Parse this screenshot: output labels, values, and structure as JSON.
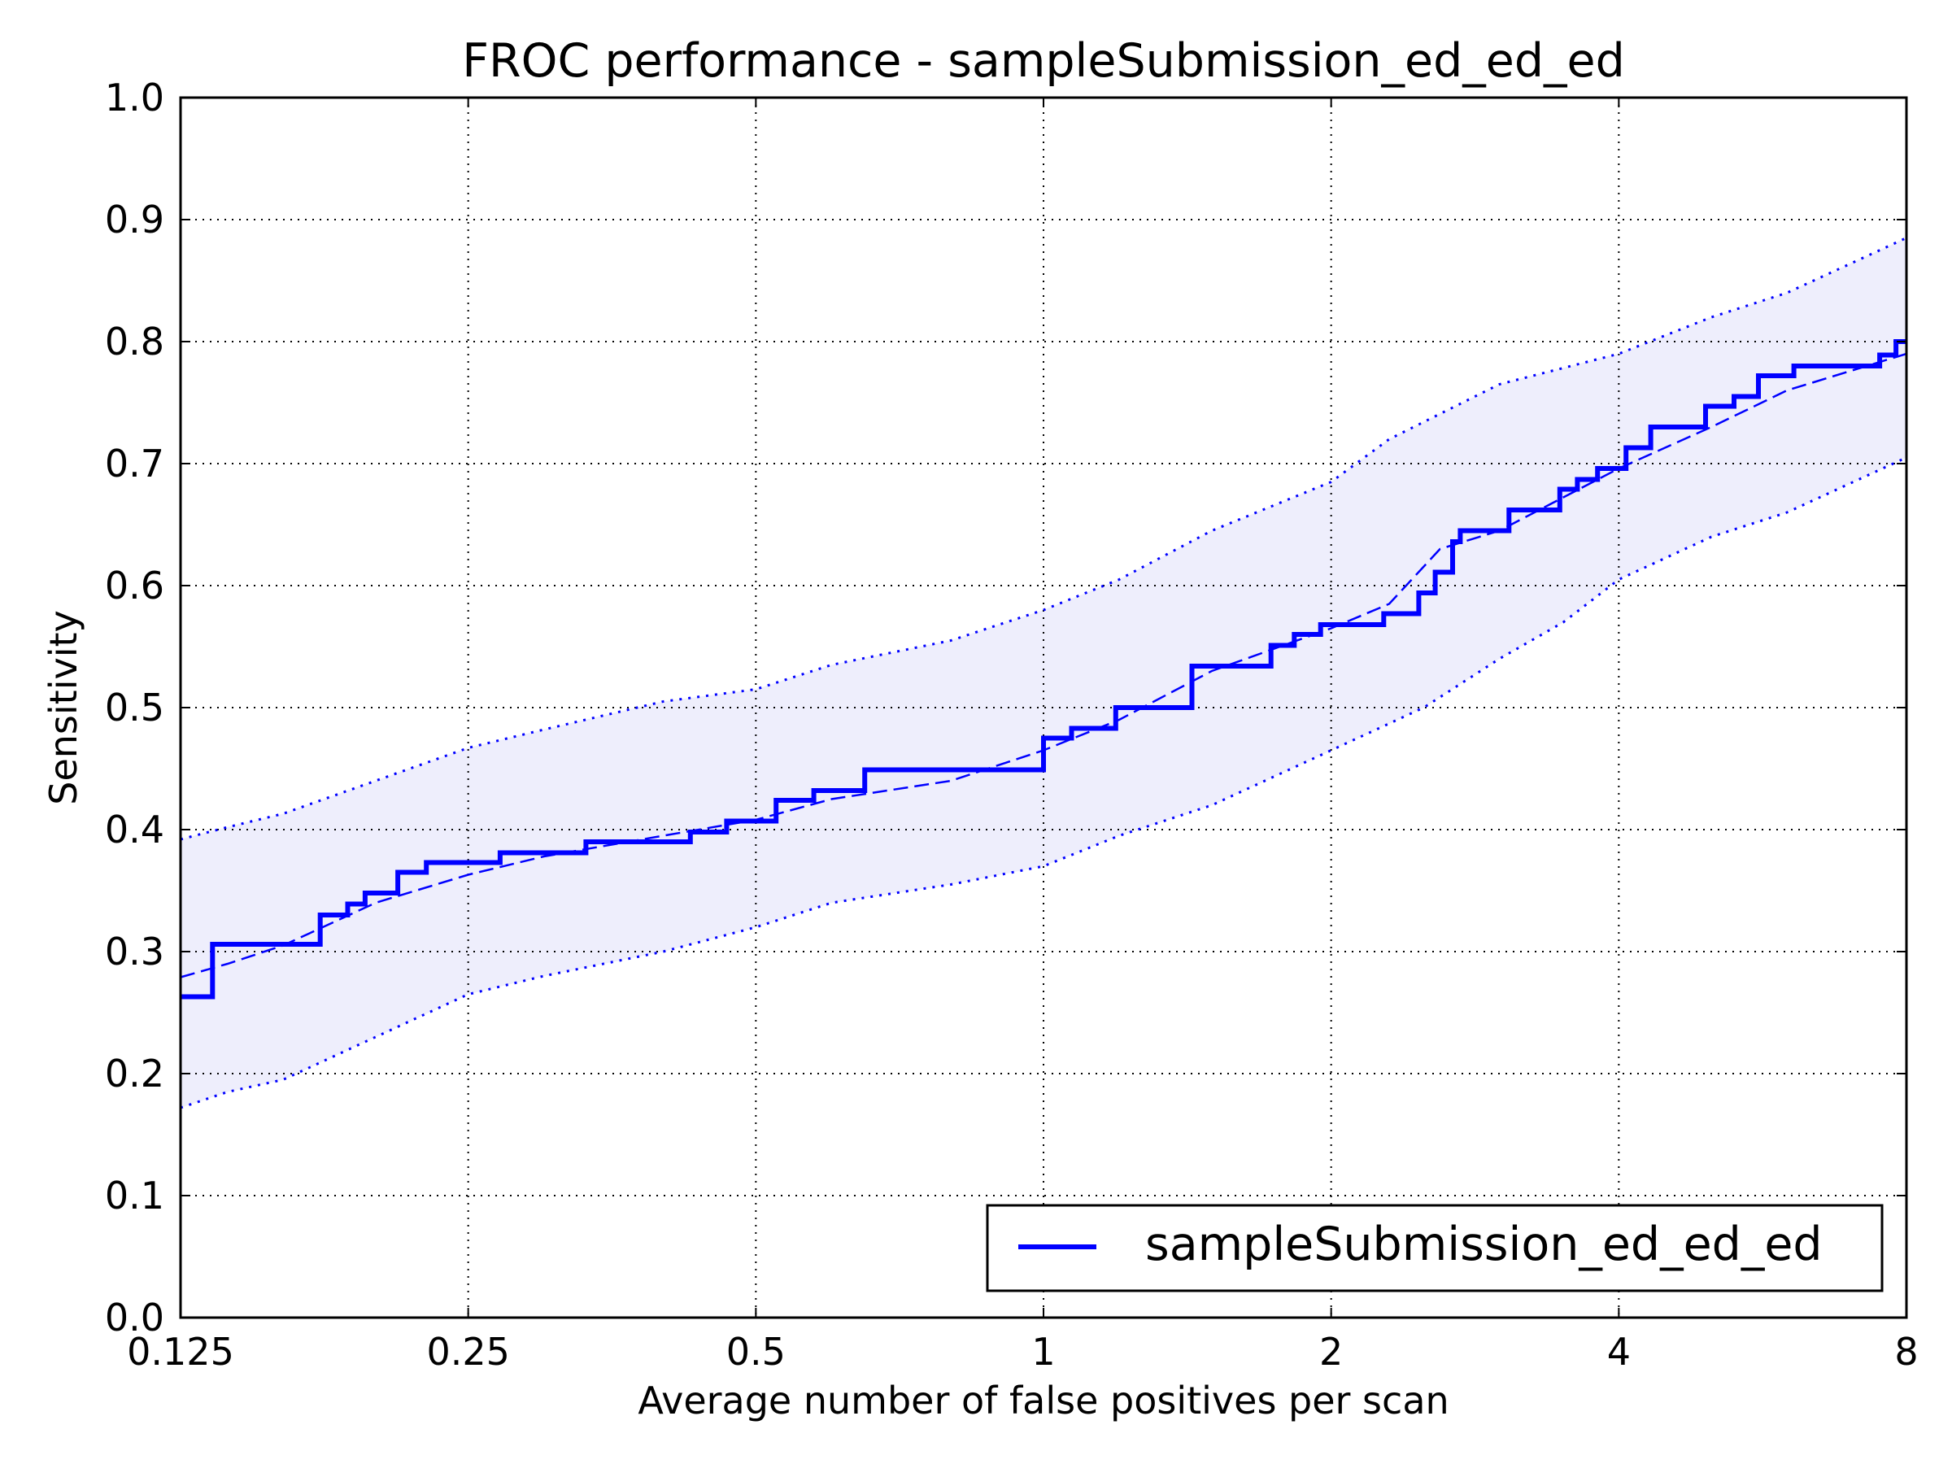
{
  "chart_data": {
    "type": "line",
    "title": "FROC performance - sampleSubmission_ed_ed_ed",
    "xlabel": "Average number of false positives per scan",
    "ylabel": "Sensitivity",
    "x_scale": "log2",
    "xlim": [
      0.125,
      8
    ],
    "ylim": [
      0.0,
      1.0
    ],
    "x_ticks": [
      {
        "value": 0.125,
        "label": "0.125"
      },
      {
        "value": 0.25,
        "label": "0.25"
      },
      {
        "value": 0.5,
        "label": "0.5"
      },
      {
        "value": 1,
        "label": "1"
      },
      {
        "value": 2,
        "label": "2"
      },
      {
        "value": 4,
        "label": "4"
      },
      {
        "value": 8,
        "label": "8"
      }
    ],
    "y_ticks": [
      {
        "value": 0.0,
        "label": "0.0"
      },
      {
        "value": 0.1,
        "label": "0.1"
      },
      {
        "value": 0.2,
        "label": "0.2"
      },
      {
        "value": 0.3,
        "label": "0.3"
      },
      {
        "value": 0.4,
        "label": "0.4"
      },
      {
        "value": 0.5,
        "label": "0.5"
      },
      {
        "value": 0.6,
        "label": "0.6"
      },
      {
        "value": 0.7,
        "label": "0.7"
      },
      {
        "value": 0.8,
        "label": "0.8"
      },
      {
        "value": 0.9,
        "label": "0.9"
      },
      {
        "value": 1.0,
        "label": "1.0"
      }
    ],
    "grid": true,
    "legend_position": "bottom-right",
    "series": [
      {
        "name": "sampleSubmission_ed_ed_ed",
        "style": "solid-step",
        "color": "#0000ff",
        "x": [
          0.125,
          0.135,
          0.135,
          0.175,
          0.175,
          0.181,
          0.181,
          0.187,
          0.187,
          0.195,
          0.195,
          0.211,
          0.211,
          0.226,
          0.226,
          0.27,
          0.27,
          0.332,
          0.332,
          0.427,
          0.427,
          0.466,
          0.466,
          0.525,
          0.525,
          0.575,
          0.575,
          0.65,
          0.65,
          1.0,
          1.0,
          1.07,
          1.07,
          1.19,
          1.19,
          1.43,
          1.43,
          1.48,
          1.48,
          1.73,
          1.73,
          1.83,
          1.83,
          1.95,
          1.95,
          2.27,
          2.27,
          2.47,
          2.47,
          2.57,
          2.57,
          2.68,
          2.68,
          2.73,
          2.73,
          3.07,
          3.07,
          3.47,
          3.47,
          3.62,
          3.62,
          3.8,
          3.8,
          4.07,
          4.07,
          4.32,
          4.32,
          4.93,
          4.93,
          5.28,
          5.28,
          5.6,
          5.6,
          6.1,
          6.1,
          7.5,
          7.5,
          7.8,
          7.8,
          8.0
        ],
        "y": [
          0.263,
          0.263,
          0.306,
          0.306,
          0.33,
          0.33,
          0.33,
          0.33,
          0.339,
          0.339,
          0.348,
          0.348,
          0.365,
          0.365,
          0.373,
          0.373,
          0.381,
          0.381,
          0.39,
          0.39,
          0.398,
          0.398,
          0.407,
          0.407,
          0.424,
          0.424,
          0.432,
          0.432,
          0.449,
          0.449,
          0.475,
          0.475,
          0.483,
          0.483,
          0.5,
          0.5,
          0.534,
          0.534,
          0.534,
          0.534,
          0.551,
          0.551,
          0.56,
          0.56,
          0.568,
          0.568,
          0.577,
          0.577,
          0.594,
          0.594,
          0.611,
          0.611,
          0.636,
          0.636,
          0.645,
          0.645,
          0.662,
          0.662,
          0.679,
          0.679,
          0.687,
          0.687,
          0.696,
          0.696,
          0.713,
          0.713,
          0.73,
          0.73,
          0.747,
          0.747,
          0.755,
          0.755,
          0.772,
          0.772,
          0.78,
          0.78,
          0.789,
          0.789,
          0.8,
          0.8
        ]
      },
      {
        "style": "dashed",
        "color": "#0000ff",
        "x": [
          0.125,
          0.14,
          0.16,
          0.2,
          0.25,
          0.3,
          0.4,
          0.5,
          0.6,
          0.8,
          1.0,
          1.2,
          1.5,
          2.0,
          2.3,
          2.6,
          3.0,
          4.0,
          5.0,
          6.0,
          8.0
        ],
        "y": [
          0.279,
          0.29,
          0.305,
          0.34,
          0.363,
          0.378,
          0.395,
          0.408,
          0.425,
          0.44,
          0.465,
          0.49,
          0.53,
          0.565,
          0.585,
          0.63,
          0.645,
          0.696,
          0.73,
          0.76,
          0.79
        ]
      },
      {
        "style": "dotted",
        "color": "#0000ff",
        "x": [
          0.125,
          0.14,
          0.16,
          0.2,
          0.25,
          0.3,
          0.4,
          0.5,
          0.6,
          0.8,
          1.0,
          1.2,
          1.5,
          2.0,
          2.3,
          3.0,
          4.0,
          5.0,
          6.0,
          8.0
        ],
        "y": [
          0.392,
          0.402,
          0.413,
          0.44,
          0.467,
          0.482,
          0.505,
          0.515,
          0.535,
          0.555,
          0.58,
          0.605,
          0.645,
          0.685,
          0.72,
          0.765,
          0.79,
          0.82,
          0.84,
          0.885
        ]
      },
      {
        "style": "dotted",
        "color": "#0000ff",
        "x": [
          0.125,
          0.14,
          0.16,
          0.2,
          0.25,
          0.3,
          0.4,
          0.5,
          0.6,
          0.8,
          1.0,
          1.2,
          1.5,
          2.0,
          2.5,
          3.0,
          3.5,
          4.0,
          5.0,
          6.0,
          8.0
        ],
        "y": [
          0.172,
          0.185,
          0.195,
          0.23,
          0.265,
          0.28,
          0.3,
          0.32,
          0.34,
          0.355,
          0.37,
          0.395,
          0.42,
          0.465,
          0.5,
          0.54,
          0.57,
          0.605,
          0.64,
          0.66,
          0.705
        ]
      }
    ],
    "band_color": "#eeeefc"
  }
}
